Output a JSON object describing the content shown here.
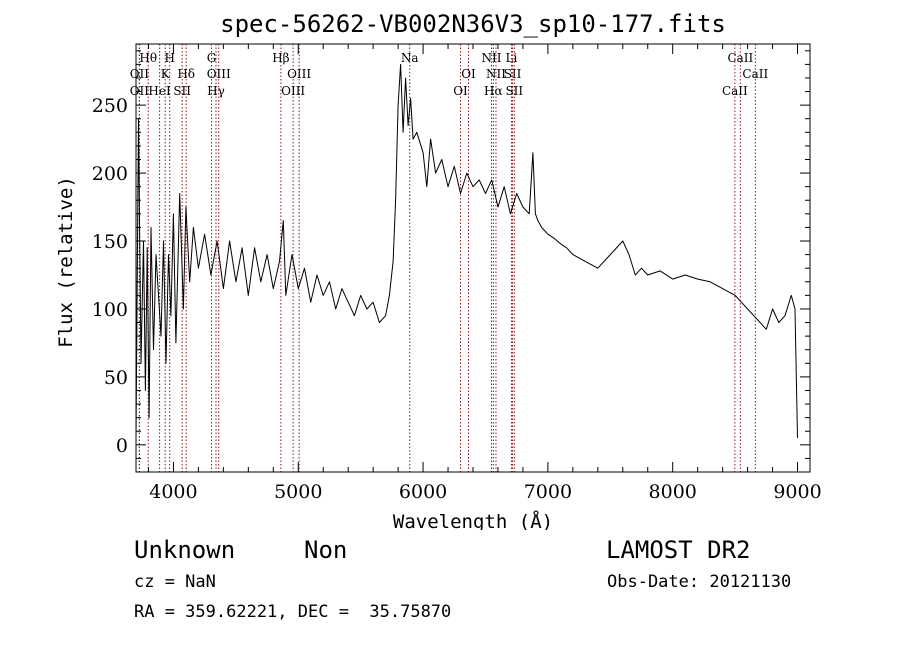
{
  "chart_data": {
    "type": "line",
    "title": "spec-56262-VB002N36V3_sp10-177.fits",
    "xlabel": "Wavelength (Å)",
    "ylabel": "Flux (relative)",
    "xlim": [
      3700,
      9100
    ],
    "ylim": [
      -20,
      295
    ],
    "x_ticks": [
      4000,
      5000,
      6000,
      7000,
      8000,
      9000
    ],
    "y_ticks": [
      0,
      50,
      100,
      150,
      200,
      250
    ],
    "x_tick_labels": [
      "4000",
      "5000",
      "6000",
      "7000",
      "8000",
      "9000"
    ],
    "y_tick_labels": [
      "0",
      "50",
      "100",
      "150",
      "200",
      "250"
    ],
    "grid": false,
    "series_color": "#000000",
    "line_marker_color": "#8b1a1a",
    "series": [
      {
        "x": [
          3700,
          3720,
          3740,
          3760,
          3775,
          3790,
          3805,
          3820,
          3840,
          3860,
          3880,
          3900,
          3920,
          3940,
          3960,
          3980,
          4000,
          4020,
          4050,
          4080,
          4100,
          4130,
          4160,
          4200,
          4250,
          4300,
          4350,
          4400,
          4450,
          4500,
          4550,
          4600,
          4650,
          4700,
          4750,
          4800,
          4850,
          4880,
          4900,
          4950,
          5000,
          5050,
          5100,
          5150,
          5200,
          5250,
          5300,
          5350,
          5400,
          5450,
          5500,
          5550,
          5600,
          5650,
          5700,
          5730,
          5760,
          5780,
          5800,
          5820,
          5840,
          5860,
          5880,
          5900,
          5920,
          5950,
          6000,
          6030,
          6060,
          6100,
          6150,
          6200,
          6250,
          6300,
          6350,
          6400,
          6450,
          6500,
          6550,
          6600,
          6650,
          6700,
          6750,
          6800,
          6850,
          6880,
          6900,
          6920,
          6950,
          7000,
          7050,
          7100,
          7150,
          7200,
          7300,
          7400,
          7500,
          7600,
          7650,
          7700,
          7750,
          7800,
          7900,
          8000,
          8100,
          8200,
          8300,
          8400,
          8500,
          8550,
          8600,
          8650,
          8700,
          8750,
          8800,
          8850,
          8900,
          8950,
          8980,
          9000
        ],
        "y": [
          5,
          240,
          60,
          150,
          40,
          145,
          20,
          160,
          70,
          140,
          110,
          80,
          150,
          60,
          140,
          95,
          170,
          75,
          185,
          100,
          175,
          120,
          160,
          130,
          155,
          125,
          150,
          115,
          150,
          120,
          145,
          110,
          145,
          120,
          140,
          115,
          135,
          165,
          110,
          140,
          115,
          130,
          105,
          125,
          110,
          120,
          100,
          115,
          105,
          95,
          110,
          100,
          105,
          90,
          95,
          110,
          135,
          180,
          250,
          280,
          230,
          270,
          235,
          255,
          225,
          230,
          215,
          190,
          225,
          200,
          210,
          190,
          205,
          185,
          200,
          190,
          195,
          185,
          195,
          175,
          190,
          170,
          185,
          175,
          170,
          215,
          170,
          165,
          160,
          155,
          152,
          148,
          145,
          140,
          135,
          130,
          140,
          150,
          140,
          125,
          130,
          125,
          128,
          122,
          125,
          122,
          120,
          115,
          110,
          105,
          100,
          95,
          90,
          85,
          100,
          90,
          95,
          110,
          100,
          5
        ]
      }
    ],
    "spectral_lines": [
      {
        "label": "Hθ",
        "wavelength": 3798,
        "tier": 1
      },
      {
        "label": "H",
        "wavelength": 3970,
        "tier": 1
      },
      {
        "label": "OII",
        "wavelength": 3727,
        "tier": 2
      },
      {
        "label": "K",
        "wavelength": 3934,
        "tier": 2
      },
      {
        "label": "Hδ",
        "wavelength": 4102,
        "tier": 2
      },
      {
        "label": "OII",
        "wavelength": 3727,
        "tier": 3
      },
      {
        "label": "HeI",
        "wavelength": 3889,
        "tier": 3
      },
      {
        "label": "SII",
        "wavelength": 4070,
        "tier": 3
      },
      {
        "label": "G",
        "wavelength": 4305,
        "tier": 1
      },
      {
        "label": "OIII",
        "wavelength": 4363,
        "tier": 2
      },
      {
        "label": "Hγ",
        "wavelength": 4341,
        "tier": 3
      },
      {
        "label": "Hβ",
        "wavelength": 4861,
        "tier": 1
      },
      {
        "label": "OIII",
        "wavelength": 5007,
        "tier": 2
      },
      {
        "label": "OIII",
        "wavelength": 4959,
        "tier": 3
      },
      {
        "label": "Na",
        "wavelength": 5893,
        "tier": 1
      },
      {
        "label": "OI",
        "wavelength": 6364,
        "tier": 2
      },
      {
        "label": "OI",
        "wavelength": 6300,
        "tier": 3
      },
      {
        "label": "NII",
        "wavelength": 6548,
        "tier": 1
      },
      {
        "label": "Li",
        "wavelength": 6708,
        "tier": 1
      },
      {
        "label": "NII",
        "wavelength": 6584,
        "tier": 2
      },
      {
        "label": "SII",
        "wavelength": 6717,
        "tier": 2
      },
      {
        "label": "Hα",
        "wavelength": 6563,
        "tier": 3
      },
      {
        "label": "SII",
        "wavelength": 6731,
        "tier": 3
      },
      {
        "label": "CaII",
        "wavelength": 8542,
        "tier": 1
      },
      {
        "label": "CaII",
        "wavelength": 8662,
        "tier": 2
      },
      {
        "label": "CaII",
        "wavelength": 8498,
        "tier": 3
      }
    ]
  },
  "footer": {
    "object_class": "Unknown",
    "subclass": "Non",
    "survey": "LAMOST DR2",
    "redshift": "cz = NaN",
    "obs_date": "Obs-Date: 20121130",
    "coords": "RA = 359.62221, DEC =  35.75870"
  }
}
